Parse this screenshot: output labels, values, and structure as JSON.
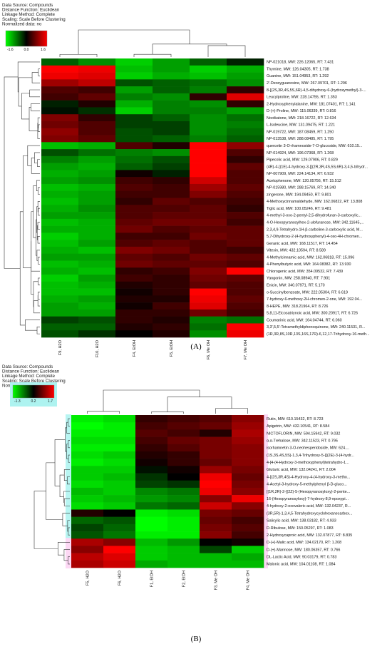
{
  "chart_data": [
    {
      "type": "heatmap",
      "panel_label": "(A)",
      "info_lines": [
        "Data Source: Compounds",
        "Distance Function: Euclidean",
        "Linkage Method: Complete",
        "Scaling: Scale Before Clustering",
        "Normalized data: no"
      ],
      "color_scale": {
        "min": -1.6,
        "mid": 0.0,
        "max": 1.6,
        "labels": [
          "-1.6",
          "0.0",
          "1.6"
        ],
        "low_color": "#00ff00",
        "mid_color": "#000000",
        "high_color": "#ff0000"
      },
      "columns": [
        "F9, H2O",
        "F10, H2O",
        "F4, EtOH",
        "F5, EtOH",
        "F6, Me OH",
        "F7, Me OH"
      ],
      "rows": [
        "NP-021018, MW: 226.12065, RT: 7.431",
        "Thymine, MW: 126.04305, RT: 1.738",
        "Guanine, MW: 151.04953, RT: 1.292",
        "2'-Deoxyguanosine, MW: 267.09701, RT: 1.296",
        "8-[(2S,3R,4S,5S,6R)-4,5-dihydroxy-6-(hydroxymethyl)-3-...",
        "Leucylproline, MW: 228.14755, RT: 1.353",
        "2-Hydroxyphenylalanine, MW: 181.07401, RT: 1.141",
        "D-(+)-Proline, MW: 115.06339, RT: 0.816",
        "Nootkatone, MW: 218.16722, RT: 12.634",
        "L-Isoleucine, MW: 131.09475, RT: 1.221",
        "NP-019722, MW: 187.08459, RT: 1.250",
        "NP-013538, MW: 288.08485, RT: 1.795",
        "quercetin 3-O-rhamnoside-7-O-glucoside, MW: 610.15...",
        "NP-014924, MW: 196.07368, RT: 1.268",
        "Pipecolic acid, MW: 129.07906, RT: 0.829",
        "(4R)-4-[(1E)-4-hydroxy-3-[[(2R,3R,4S,5S,6R)-3,4,5-trihydr...",
        "NP-007909, MW: 224.14134, RT: 6.932",
        "Acetophenone, MW: 120.05756, RT: 15.512",
        "NP-015980, MW: 288.15769, RT: 14.340",
        "zingerone, MW: 194.09450, RT: 9.801",
        "4-Methoxycinnamaldehyde, MW: 162.06822, RT: 13.808",
        "Tiglic acid, MW: 100.05246, RT: 9.481",
        "4-methyl-3-oxo-2-pentyl-2,5-dihydrofuran-3-carboxylic...",
        "4-O-Hexopyranosylhex-2-ulofuranose, MW: 342.11645,...",
        "2,3,4,9-Tetrahydro-1H-β-carboline-3-carboxylic acid, M...",
        "5,7-Dihydroxy-2-(4-hydroxyphenyl)-4-oxo-4H-chromen...",
        "Geranic acid, MW: 168.11517, RT: 14.454",
        "Vitexin, MW: 432.10594, RT: 8.589",
        "4-Methylcinnamic acid, MW: 162.06818, RT: 15.096",
        "4-Phenylbutyric acid, MW: 164.08382, RT: 13.930",
        "Chlorogenic acid, MW: 354.09532, RT: 7.439",
        "Yangonin, MW: 258.08940, RT: 7.901",
        "Enicin, MW: 340.07971, RT: 5.170",
        "o-Succinylbenzoate, MW: 222.05304, RT: 6.619",
        "7-hydroxy-6-methoxy-2H-chromen-2-one, MW: 192.04...",
        "8-HEPE, MW: 318.21964, RT: 8.726",
        "5,8,11-Eicosatriynoic acid, MW: 300.20917, RT: 6.726",
        "Coumarinic acid, MW: 164.04744, RT: 6.060",
        "3,3',5,5'-Tetramethyldiphenoquinone, MW: 240.11531, R...",
        "(1R,3R,8S,10R,13S,16S,17R)-6,12,17-Trihydroxy-16-meth..."
      ],
      "values": [
        [
          -0.6,
          -0.9,
          -1.3,
          -1.0,
          -0.6,
          -0.2
        ],
        [
          1.6,
          1.5,
          -1.2,
          -1.0,
          -1.3,
          -1.1
        ],
        [
          1.5,
          1.4,
          -1.3,
          -1.1,
          -1.2,
          -1.0
        ],
        [
          1.0,
          1.2,
          -0.5,
          -0.6,
          -0.7,
          -0.9
        ],
        [
          0.5,
          0.4,
          -1.0,
          -0.6,
          -0.8,
          0.3
        ],
        [
          0.4,
          0.6,
          -0.8,
          -0.9,
          0.3,
          1.4
        ],
        [
          -0.2,
          0.2,
          -1.1,
          -0.8,
          -0.9,
          0.3
        ],
        [
          -0.1,
          -0.3,
          -1.3,
          -0.8,
          -0.8,
          -1.0
        ],
        [
          0.8,
          0.3,
          -0.4,
          -0.6,
          -0.9,
          -0.7
        ],
        [
          0.7,
          0.5,
          -0.4,
          -0.4,
          -0.9,
          -0.8
        ],
        [
          0.9,
          0.5,
          -0.5,
          -0.4,
          -0.9,
          -0.7
        ],
        [
          0.8,
          0.6,
          -0.5,
          -0.6,
          -0.8,
          -0.6
        ],
        [
          -1.2,
          -1.1,
          0.5,
          0.2,
          1.6,
          0.9
        ],
        [
          -0.5,
          -0.7,
          -0.8,
          -0.9,
          1.6,
          0.5
        ],
        [
          -0.8,
          -1.0,
          -0.7,
          -0.5,
          1.6,
          0.3
        ],
        [
          -1.0,
          -1.1,
          -0.6,
          -0.4,
          1.6,
          0.6
        ],
        [
          -1.1,
          -1.0,
          0.1,
          -0.2,
          1.6,
          0.5
        ],
        [
          -1.0,
          -0.9,
          0.4,
          0.3,
          1.3,
          0.5
        ],
        [
          -1.2,
          -1.1,
          0.5,
          0.4,
          1.0,
          0.6
        ],
        [
          -1.1,
          -1.0,
          0.4,
          0.4,
          0.8,
          0.5
        ],
        [
          -1.2,
          -1.0,
          0.3,
          0.6,
          0.5,
          0.4
        ],
        [
          -1.1,
          -0.9,
          0.5,
          0.5,
          0.6,
          0.3
        ],
        [
          -1.0,
          -1.0,
          0.5,
          0.6,
          0.6,
          0.5
        ],
        [
          -1.2,
          -1.1,
          0.6,
          0.7,
          0.7,
          0.4
        ],
        [
          -1.1,
          -1.1,
          0.7,
          0.5,
          0.6,
          0.6
        ],
        [
          -1.3,
          -1.1,
          0.4,
          0.4,
          0.7,
          0.6
        ],
        [
          -1.2,
          -1.0,
          0.5,
          0.6,
          0.5,
          0.6
        ],
        [
          -1.1,
          -1.2,
          0.8,
          0.7,
          0.5,
          0.4
        ],
        [
          -1.0,
          -1.0,
          0.6,
          0.5,
          0.7,
          0.6
        ],
        [
          -1.2,
          -1.1,
          0.7,
          0.6,
          0.6,
          0.5
        ],
        [
          -1.1,
          -1.2,
          0.3,
          0.4,
          0.8,
          1.6
        ],
        [
          -1.3,
          -1.0,
          0.4,
          0.3,
          0.7,
          0.6
        ],
        [
          -1.2,
          -1.1,
          0.2,
          0.3,
          0.6,
          0.5
        ],
        [
          -1.2,
          -1.2,
          0.1,
          0.3,
          1.6,
          0.5
        ],
        [
          -1.1,
          -1.0,
          0.2,
          0.2,
          1.5,
          0.6
        ],
        [
          -1.0,
          -1.1,
          0.1,
          0.4,
          1.4,
          0.5
        ],
        [
          -1.0,
          -1.0,
          0.3,
          0.3,
          0.7,
          0.4
        ],
        [
          -0.4,
          -0.5,
          0.3,
          0.2,
          -0.8,
          -0.7
        ],
        [
          -0.6,
          -0.6,
          0.2,
          0.3,
          -0.7,
          1.6
        ],
        [
          -0.5,
          -0.3,
          0.0,
          0.2,
          -0.9,
          1.5
        ]
      ]
    },
    {
      "type": "heatmap",
      "panel_label": "(B)",
      "info_lines": [
        "Data Source: Compounds",
        "Distance Function: Euclidean",
        "Linkage Method: Complete",
        "Scaling: Scale Before Clustering",
        "Normalized data: no"
      ],
      "color_scale": {
        "min": -1.3,
        "mid": 0.2,
        "max": 1.7,
        "labels": [
          "-1.3",
          "0.2",
          "1.7"
        ],
        "low_color": "#00ff00",
        "mid_color": "#000000",
        "high_color": "#ff0000"
      },
      "columns": [
        "F5, H2O",
        "F6, H2O",
        "F1, EtOH",
        "F2, EtOH",
        "F3, Me OH",
        "F4, Me OH"
      ],
      "rows": [
        "Rutin, MW: 610.15432, RT: 8.723",
        "Apigetrin, MW: 432.10541, RT: 8.584",
        "NICTOFLORIN, MW: 594.15942, RT: 9.032",
        "α,α-Trehalose, MW: 342.11523, RT: 0.795",
        "isorhamnetin 3-O-neohesperidoside, MW: 624....",
        "(1S,3S,4S,5S)-1,3,4-Trihydroxy-5-{[(2E)-3-(4-hydr...",
        "4-[4-(4-Hydroxy-3-methoxyphenyl)tetrahydro-1...",
        "Glutaric acid, MW: 132.04241, RT: 2.004",
        "4-[(2S,3R,4S)-4-Hydroxy-4-(4-hydroxy-3-metho...",
        "4-Acetyl-3-hydroxy-5-methylphenyl β-D-gluco...",
        "[(1R,2R)-2-[(2Z)-5-(Hexopyranosyloxy)-2-pente...",
        "16-(Hexopyranosyloxy)-7-hydroxy-8,9-epoxypi...",
        "4-hydroxy-2-oxovaleric acid, MW: 132.04237, R...",
        "(3R,5R)-1,3,4,5-Tetrahydroxycyclohexanecarbox...",
        "Salicylic acid, MW: 138.03182, RT: 4.933",
        "D-Ribulose, MW: 150.05297, RT: 1.083",
        "2-Hydroxycaproic acid, MW: 132.07877, RT: 8.835",
        "D-(+)-Malic acid, MW: 134.02170, RT: 1.208",
        "D-(+)-Mannose, MW: 180.06357, RT: 0.766",
        "DL-Lactic Acid, MW: 90.03179, RT: 0.783",
        "Malonic acid, MW: 104.01108, RT: 1.084"
      ],
      "values": [
        [
          -1.2,
          -1.1,
          0.5,
          0.6,
          0.7,
          1.0
        ],
        [
          -1.3,
          -1.2,
          0.6,
          0.7,
          0.8,
          1.1
        ],
        [
          -1.2,
          -1.2,
          0.7,
          0.6,
          0.4,
          1.2
        ],
        [
          -1.1,
          -1.1,
          0.6,
          0.8,
          0.9,
          1.1
        ],
        [
          -1.2,
          -1.2,
          0.5,
          0.7,
          0.9,
          1.0
        ],
        [
          -1.1,
          -1.0,
          0.4,
          0.5,
          0.9,
          1.0
        ],
        [
          -1.2,
          -1.1,
          0.3,
          0.5,
          0.8,
          1.0
        ],
        [
          -1.0,
          -1.0,
          0.1,
          0.3,
          1.1,
          0.9
        ],
        [
          -1.0,
          -0.9,
          -0.1,
          0.2,
          1.6,
          0.8
        ],
        [
          -1.1,
          -1.0,
          -0.2,
          -0.1,
          1.7,
          0.9
        ],
        [
          -0.9,
          -1.0,
          -0.6,
          -0.5,
          1.6,
          1.0
        ],
        [
          -1.0,
          -0.9,
          -0.7,
          -0.6,
          1.0,
          1.6
        ],
        [
          -1.1,
          -1.0,
          -0.5,
          -0.4,
          1.4,
          1.0
        ],
        [
          0.4,
          0.2,
          -1.2,
          -1.1,
          0.9,
          0.8
        ],
        [
          -0.4,
          -0.3,
          -1.3,
          -1.2,
          0.8,
          0.6
        ],
        [
          -0.2,
          -0.4,
          -1.3,
          -1.2,
          0.9,
          0.7
        ],
        [
          -0.3,
          -0.5,
          -1.2,
          -1.2,
          1.0,
          0.6
        ],
        [
          1.2,
          1.0,
          -0.9,
          -0.7,
          0.2,
          0.3
        ],
        [
          1.0,
          1.7,
          -1.0,
          -0.9,
          -0.2,
          -1.0
        ],
        [
          1.3,
          1.5,
          -1.0,
          -0.9,
          -0.9,
          -0.8
        ],
        [
          1.2,
          1.4,
          -0.8,
          -0.9,
          -0.9,
          -0.9
        ]
      ]
    }
  ]
}
